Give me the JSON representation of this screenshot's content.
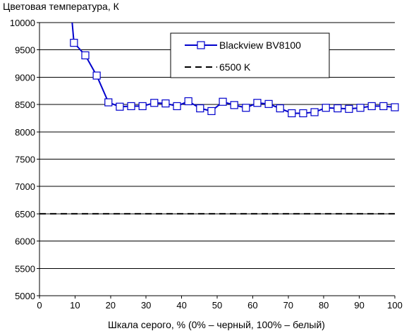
{
  "chart_data": {
    "type": "line",
    "title": "",
    "ylabel": "Цветовая температура, К",
    "xlabel": "Шкала серого, % (0% – черный, 100% – белый)",
    "xlim": [
      0,
      100
    ],
    "ylim": [
      5000,
      10000
    ],
    "xticks": [
      0,
      10,
      20,
      30,
      40,
      50,
      60,
      70,
      80,
      90,
      100
    ],
    "yticks": [
      5000,
      5500,
      6000,
      6500,
      7000,
      7500,
      8000,
      8500,
      9000,
      9500,
      10000
    ],
    "grid": "horizontal",
    "legend_position": "top-right",
    "series": [
      {
        "name": "Blackview BV8100",
        "color": "#0000cc",
        "marker": "open-square",
        "line_extends_from": {
          "x": 9.2,
          "y": 10000
        },
        "x": [
          9.7,
          12.9,
          16.1,
          19.4,
          22.6,
          25.8,
          29.0,
          32.3,
          35.5,
          38.7,
          41.9,
          45.2,
          48.4,
          51.6,
          54.8,
          58.1,
          61.3,
          64.5,
          67.7,
          71.0,
          74.2,
          77.4,
          80.6,
          83.9,
          87.1,
          90.3,
          93.5,
          96.8,
          100.0
        ],
        "values": [
          9630,
          9400,
          9030,
          8540,
          8460,
          8470,
          8470,
          8530,
          8520,
          8470,
          8560,
          8430,
          8380,
          8550,
          8490,
          8440,
          8530,
          8510,
          8430,
          8340,
          8340,
          8360,
          8440,
          8430,
          8420,
          8440,
          8470,
          8470,
          8450
        ]
      },
      {
        "name": "6500 K",
        "color": "#000000",
        "style": "dashed",
        "x": [
          0,
          100
        ],
        "values": [
          6500,
          6500
        ]
      }
    ]
  }
}
